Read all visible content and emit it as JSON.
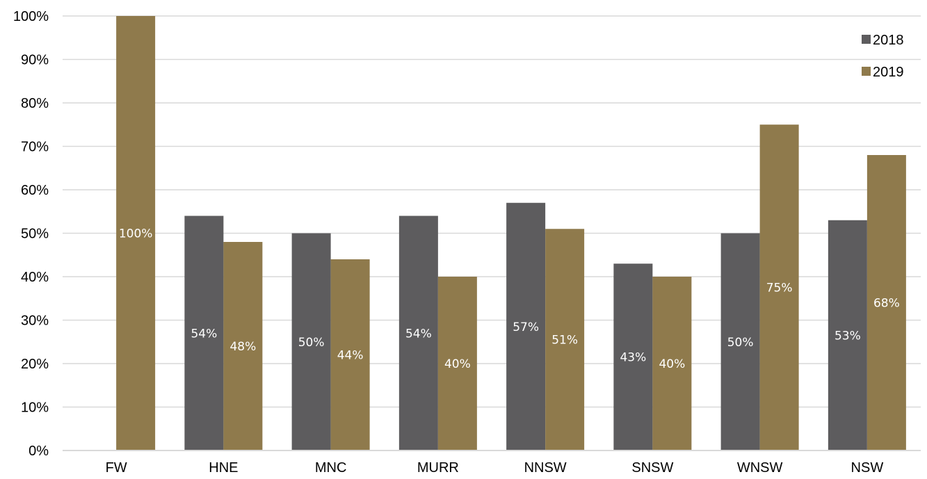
{
  "chart_data": {
    "type": "bar",
    "categories": [
      "FW",
      "HNE",
      "MNC",
      "MURR",
      "NNSW",
      "SNSW",
      "WNSW",
      "NSW"
    ],
    "series": [
      {
        "name": "2018",
        "values": [
          null,
          54,
          50,
          54,
          57,
          43,
          50,
          53
        ],
        "labels": [
          "",
          "54%",
          "50%",
          "54%",
          "57%",
          "43%",
          "50%",
          "53%"
        ],
        "color": "#5d5c5e"
      },
      {
        "name": "2019",
        "values": [
          100,
          48,
          44,
          40,
          51,
          40,
          75,
          68
        ],
        "labels": [
          "100%",
          "48%",
          "44%",
          "40%",
          "51%",
          "40%",
          "75%",
          "68%"
        ],
        "color": "#8f7a4c"
      }
    ],
    "ylim": [
      0,
      100
    ],
    "yticks": [
      0,
      10,
      20,
      30,
      40,
      50,
      60,
      70,
      80,
      90,
      100
    ],
    "ytick_labels": [
      "0%",
      "10%",
      "20%",
      "30%",
      "40%",
      "50%",
      "60%",
      "70%",
      "80%",
      "90%",
      "100%"
    ],
    "grid": true,
    "legend": "top-right",
    "gridline_color": "#d9d9d9",
    "axis_color": "#d9d9d9"
  }
}
